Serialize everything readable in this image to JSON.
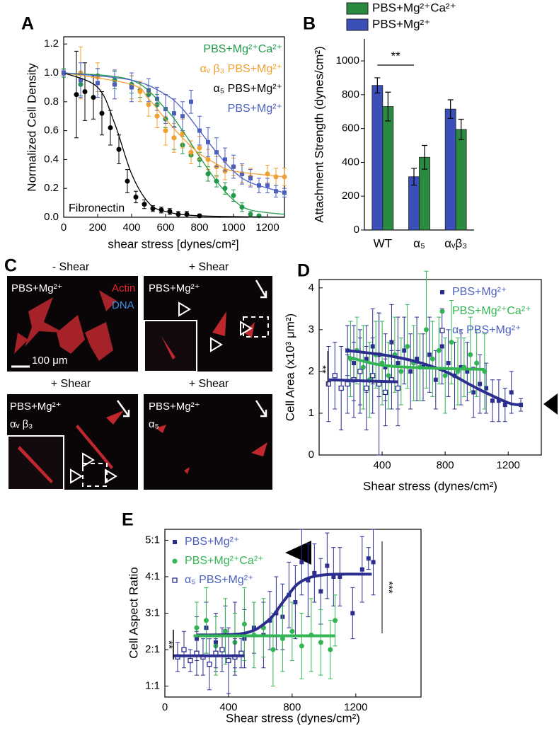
{
  "chart_data": [
    {
      "type": "scatter",
      "panel_label": "A",
      "x_label": "shear stress [dynes/cm²]",
      "y_label": "Normalized Cell Density",
      "annotation": "Fibronectin",
      "legend": "upper right",
      "legend_markers": false,
      "xlim": [
        0,
        1300
      ],
      "ylim": [
        0,
        1.25
      ],
      "xticks": [
        0,
        200,
        400,
        600,
        800,
        1000,
        1200
      ],
      "yticks": [
        {
          "value": 0,
          "label": "0.0"
        },
        0.2,
        0.4,
        0.6,
        0.8,
        {
          "value": 1,
          "label": "1.0"
        },
        1.2
      ],
      "series": [
        {
          "name": "PBS+Mg²⁺Ca²⁺",
          "color": "#1f9a48",
          "marker": "circle",
          "x": [
            0,
            100,
            200,
            300,
            400,
            450,
            500,
            550,
            600,
            650,
            700,
            750,
            800,
            850,
            900,
            950,
            1000,
            1050,
            1100,
            1150
          ],
          "values": [
            1.0,
            0.92,
            0.98,
            0.95,
            0.92,
            0.88,
            0.85,
            0.78,
            0.68,
            0.55,
            0.5,
            0.43,
            0.4,
            0.3,
            0.25,
            0.2,
            0.15,
            0.07,
            0.02,
            0.01
          ],
          "errors": [
            0.03,
            0.08,
            0.05,
            0.06,
            0.06,
            0.05,
            0.06,
            0.07,
            0.06,
            0.08,
            0.06,
            0.06,
            0.05,
            0.05,
            0.04,
            0.04,
            0.04,
            0.03,
            0.02,
            0.01
          ],
          "fit_x": [
            0,
            400,
            600,
            700,
            800,
            900,
            1000,
            1100,
            1300
          ],
          "fit_values": [
            1.0,
            0.95,
            0.75,
            0.6,
            0.42,
            0.25,
            0.12,
            0.05,
            0.02
          ]
        },
        {
          "name": "αᵥ β₃ PBS+Mg²⁺",
          "color": "#f0a030",
          "marker": "circle",
          "x": [
            0,
            100,
            200,
            300,
            400,
            450,
            500,
            550,
            600,
            650,
            700,
            750,
            800,
            850,
            900,
            950,
            1000,
            1050,
            1100,
            1200,
            1250,
            1300
          ],
          "values": [
            1.0,
            1.0,
            0.97,
            0.92,
            0.9,
            0.87,
            0.78,
            0.7,
            0.6,
            0.55,
            0.58,
            0.45,
            0.48,
            0.4,
            0.35,
            0.32,
            0.35,
            0.3,
            0.28,
            0.3,
            0.28,
            0.28
          ],
          "errors": [
            0.02,
            0.18,
            0.1,
            0.1,
            0.08,
            0.07,
            0.08,
            0.08,
            0.1,
            0.1,
            0.1,
            0.08,
            0.08,
            0.07,
            0.07,
            0.06,
            0.06,
            0.06,
            0.06,
            0.06,
            0.06,
            0.06
          ],
          "fit_x": [
            0,
            400,
            500,
            600,
            700,
            800,
            900,
            1000,
            1300
          ],
          "fit_values": [
            1.0,
            0.92,
            0.82,
            0.68,
            0.55,
            0.44,
            0.37,
            0.32,
            0.28
          ]
        },
        {
          "name": "α₅ PBS+Mg²⁺",
          "color": "#000000",
          "marker": "circle",
          "x": [
            75,
            125,
            175,
            225,
            275,
            325,
            375,
            425,
            475,
            525,
            575,
            625,
            675,
            725,
            800
          ],
          "values": [
            0.85,
            0.87,
            0.83,
            0.72,
            0.62,
            0.47,
            0.25,
            0.14,
            0.09,
            0.06,
            0.05,
            0.04,
            0.02,
            0.02,
            0.01
          ],
          "errors": [
            0.3,
            0.2,
            0.15,
            0.15,
            0.12,
            0.1,
            0.08,
            0.04,
            0.03,
            0.02,
            0.02,
            0.02,
            0.02,
            0.02,
            0.01
          ],
          "fit_x": [
            0,
            200,
            300,
            400,
            500,
            600,
            800,
            1300
          ],
          "fit_values": [
            1.0,
            0.9,
            0.65,
            0.3,
            0.1,
            0.04,
            0.01,
            0.0
          ]
        },
        {
          "name": "PBS+Mg²⁺",
          "color": "#4a5fc0",
          "marker": "square",
          "x": [
            0,
            100,
            200,
            300,
            400,
            500,
            550,
            600,
            650,
            700,
            750,
            800,
            850,
            900,
            950,
            1000,
            1050,
            1100,
            1150,
            1200,
            1250,
            1300
          ],
          "values": [
            1.0,
            0.95,
            0.93,
            0.92,
            0.9,
            0.88,
            0.82,
            0.75,
            0.72,
            0.7,
            0.8,
            0.6,
            0.52,
            0.45,
            0.4,
            0.35,
            0.3,
            0.27,
            0.22,
            0.22,
            0.18,
            0.17
          ],
          "errors": [
            0.02,
            0.12,
            0.1,
            0.1,
            0.1,
            0.08,
            0.08,
            0.1,
            0.1,
            0.1,
            0.08,
            0.1,
            0.1,
            0.1,
            0.08,
            0.08,
            0.07,
            0.06,
            0.05,
            0.05,
            0.04,
            0.03
          ],
          "fit_x": [
            0,
            400,
            600,
            700,
            800,
            900,
            1000,
            1100,
            1300
          ],
          "fit_values": [
            1.0,
            0.95,
            0.85,
            0.75,
            0.6,
            0.45,
            0.32,
            0.24,
            0.17
          ]
        }
      ]
    },
    {
      "type": "bar",
      "panel_label": "B",
      "y_label": "Attachment Strength (dynes/cm²)",
      "significance": "**",
      "categories": [
        "WT",
        "α₅",
        "αᵥβ₃"
      ],
      "ylim": [
        0,
        1130
      ],
      "yticks": [
        0,
        200,
        400,
        600,
        800,
        1000
      ],
      "series": [
        {
          "name": "PBS+Mg²⁺",
          "color": "#3a4fb8",
          "values": [
            855,
            315,
            715
          ],
          "errors": [
            45,
            50,
            55
          ]
        },
        {
          "name": "PBS+Mg²⁺Ca²⁺",
          "color": "#2a8a40",
          "values": [
            730,
            430,
            595
          ],
          "errors": [
            85,
            70,
            60
          ]
        }
      ]
    },
    {
      "type": "scatter",
      "panel_label": "D",
      "x_label": "Shear stress (dynes/cm²)",
      "y_label": "Cell Area (x10³ μm²)",
      "significance": "**",
      "legend": "upper right",
      "legend_markers": true,
      "xlim": [
        0,
        1410
      ],
      "ylim": [
        0,
        4.2
      ],
      "xticks": [
        400,
        800,
        1200
      ],
      "yticks": [
        0,
        1,
        2,
        3,
        4
      ],
      "series": [
        {
          "name": "PBS+Mg²⁺",
          "color": "#2b2e8f",
          "marker": "square",
          "x": [
            180,
            220,
            260,
            300,
            340,
            380,
            420,
            460,
            500,
            540,
            580,
            620,
            660,
            700,
            740,
            780,
            820,
            860,
            900,
            940,
            980,
            1020,
            1060,
            1100,
            1140,
            1180,
            1220,
            1280
          ],
          "values": [
            2.5,
            2.2,
            2.0,
            2.3,
            2.6,
            2.4,
            2.1,
            2.7,
            2.2,
            2.5,
            2.0,
            2.3,
            2.1,
            2.4,
            1.8,
            2.6,
            2.2,
            1.9,
            2.1,
            2.0,
            1.5,
            1.7,
            1.6,
            1.3,
            1.3,
            1.2,
            1.5,
            1.2
          ],
          "errors": [
            0.6,
            0.9,
            1.0,
            0.8,
            0.9,
            1.0,
            0.8,
            0.9,
            1.1,
            0.8,
            0.9,
            1.0,
            0.8,
            0.9,
            0.7,
            0.9,
            0.8,
            0.8,
            0.9,
            0.7,
            0.6,
            0.7,
            0.6,
            0.5,
            0.5,
            0.4,
            0.5,
            0.15
          ],
          "fit_x": [
            180,
            400,
            600,
            800,
            1000,
            1200,
            1280
          ],
          "fit_values": [
            2.5,
            2.4,
            2.25,
            2.0,
            1.6,
            1.25,
            1.2
          ]
        },
        {
          "name": "PBS+Mg²⁺Ca²⁺",
          "color": "#33b554",
          "marker": "circle",
          "x": [
            200,
            240,
            280,
            320,
            360,
            400,
            440,
            480,
            520,
            560,
            600,
            640,
            680,
            720,
            760,
            800,
            840,
            880,
            920,
            960,
            1000,
            1050
          ],
          "values": [
            2.3,
            2.5,
            2.1,
            1.8,
            2.4,
            2.2,
            1.9,
            2.4,
            2.0,
            2.6,
            2.2,
            2.1,
            3.0,
            2.3,
            2.5,
            1.9,
            2.7,
            2.0,
            2.1,
            2.4,
            2.2,
            2.0
          ],
          "errors": [
            0.9,
            0.8,
            1.0,
            0.9,
            0.8,
            1.0,
            0.8,
            0.9,
            0.8,
            1.0,
            0.9,
            0.8,
            1.4,
            0.9,
            0.8,
            0.9,
            1.0,
            0.8,
            0.7,
            0.9,
            0.8,
            0.9
          ],
          "fit_x": [
            180,
            400,
            700,
            1050
          ],
          "fit_values": [
            2.35,
            2.15,
            2.08,
            2.05
          ]
        },
        {
          "name": "α₅ PBS+Mg²⁺",
          "color": "#2b2e8f",
          "marker": "open-square",
          "x": [
            60,
            100,
            140,
            180,
            220,
            260,
            300,
            340,
            380,
            420,
            460,
            500
          ],
          "values": [
            1.7,
            1.9,
            1.6,
            1.7,
            1.8,
            2.0,
            1.6,
            1.9,
            1.7,
            1.5,
            1.8,
            1.6
          ],
          "errors": [
            0.9,
            0.8,
            1.0,
            0.7,
            0.9,
            0.8,
            1.0,
            0.9,
            1.7,
            0.8,
            0.7,
            0.9
          ],
          "fit_x": [
            60,
            500
          ],
          "fit_values": [
            1.8,
            1.75
          ]
        }
      ]
    },
    {
      "type": "scatter",
      "panel_label": "E",
      "x_label": "Shear stress (dynes/cm²)",
      "y_label": "Cell Aspect Ratio",
      "significance": [
        "**",
        "***"
      ],
      "legend": "upper left",
      "legend_markers": true,
      "xlim": [
        0,
        1610
      ],
      "ylim": [
        0.7,
        5.3
      ],
      "xticks": [
        0,
        400,
        800,
        1200
      ],
      "yticks": [
        {
          "value": 1,
          "label": "1:1"
        },
        {
          "value": 2,
          "label": "2:1"
        },
        {
          "value": 3,
          "label": "3:1"
        },
        {
          "value": 4,
          "label": "4:1"
        },
        {
          "value": 5,
          "label": "5:1"
        }
      ],
      "series": [
        {
          "name": "PBS+Mg²⁺",
          "color": "#2b2e8f",
          "marker": "square",
          "x": [
            200,
            260,
            320,
            380,
            440,
            500,
            560,
            620,
            660,
            700,
            740,
            780,
            820,
            860,
            900,
            940,
            980,
            1020,
            1060,
            1100,
            1180,
            1240,
            1280,
            1310
          ],
          "values": [
            2.3,
            2.6,
            2.2,
            2.5,
            2.4,
            2.3,
            2.6,
            2.4,
            2.8,
            3.0,
            2.9,
            3.5,
            3.3,
            4.4,
            3.9,
            4.1,
            3.6,
            4.3,
            4.0,
            4.0,
            3.0,
            4.2,
            4.5,
            4.4
          ],
          "errors": [
            0.6,
            0.7,
            0.8,
            0.7,
            0.9,
            0.8,
            0.7,
            0.9,
            0.8,
            1.0,
            0.9,
            0.9,
            1.0,
            0.9,
            1.0,
            0.8,
            0.9,
            0.9,
            0.8,
            0.8,
            0.7,
            0.9,
            0.3,
            0.9
          ],
          "fit_x": [
            200,
            500,
            650,
            750,
            850,
            1000,
            1300
          ],
          "fit_values": [
            2.4,
            2.45,
            2.8,
            3.35,
            3.85,
            4.05,
            4.07
          ]
        },
        {
          "name": "PBS+Mg²⁺Ca²⁺",
          "color": "#33b554",
          "marker": "circle",
          "x": [
            200,
            260,
            320,
            380,
            440,
            500,
            560,
            620,
            680,
            740,
            800,
            860,
            920,
            980,
            1040,
            1070
          ],
          "values": [
            2.6,
            2.8,
            2.1,
            2.5,
            2.2,
            2.7,
            2.4,
            2.6,
            2.0,
            2.3,
            2.5,
            2.1,
            2.4,
            2.2,
            2.0,
            2.8
          ],
          "errors": [
            0.7,
            0.9,
            0.8,
            0.9,
            0.8,
            1.0,
            0.9,
            0.8,
            1.0,
            0.9,
            0.8,
            0.9,
            1.0,
            0.9,
            0.8,
            0.7
          ],
          "fit_x": [
            180,
            1070
          ],
          "fit_values": [
            2.38,
            2.38
          ]
        },
        {
          "name": "α₅ PBS+Mg²⁺",
          "color": "#2b2e8f",
          "marker": "open-square",
          "x": [
            80,
            120,
            160,
            200,
            240,
            280,
            320,
            360,
            400,
            440,
            480
          ],
          "values": [
            1.8,
            2.0,
            1.7,
            1.9,
            1.8,
            1.6,
            1.9,
            2.0,
            1.7,
            1.8,
            1.9
          ],
          "errors": [
            0.4,
            0.5,
            0.3,
            0.6,
            0.5,
            0.7,
            0.4,
            0.6,
            0.9,
            0.5,
            0.4
          ],
          "fit_x": [
            50,
            500
          ],
          "fit_values": [
            1.83,
            1.83
          ]
        }
      ]
    }
  ],
  "panel_c": {
    "panel_label": "C",
    "heading_1": "- Shear",
    "heading_2": "+ Shear",
    "heading_3": "+ Shear",
    "heading_4": "+ Shear",
    "image_1_condition": "PBS+Mg²⁺",
    "stain_actin": "Actin",
    "stain_dna": "DNA",
    "scale_bar": "100 μm",
    "image_2_condition": "PBS+Mg²⁺",
    "image_3_condition": "PBS+Mg²⁺",
    "image_3_integrin": "αᵥ β₃",
    "image_4_condition": "PBS+Mg²⁺",
    "image_4_integrin": "α₅"
  }
}
